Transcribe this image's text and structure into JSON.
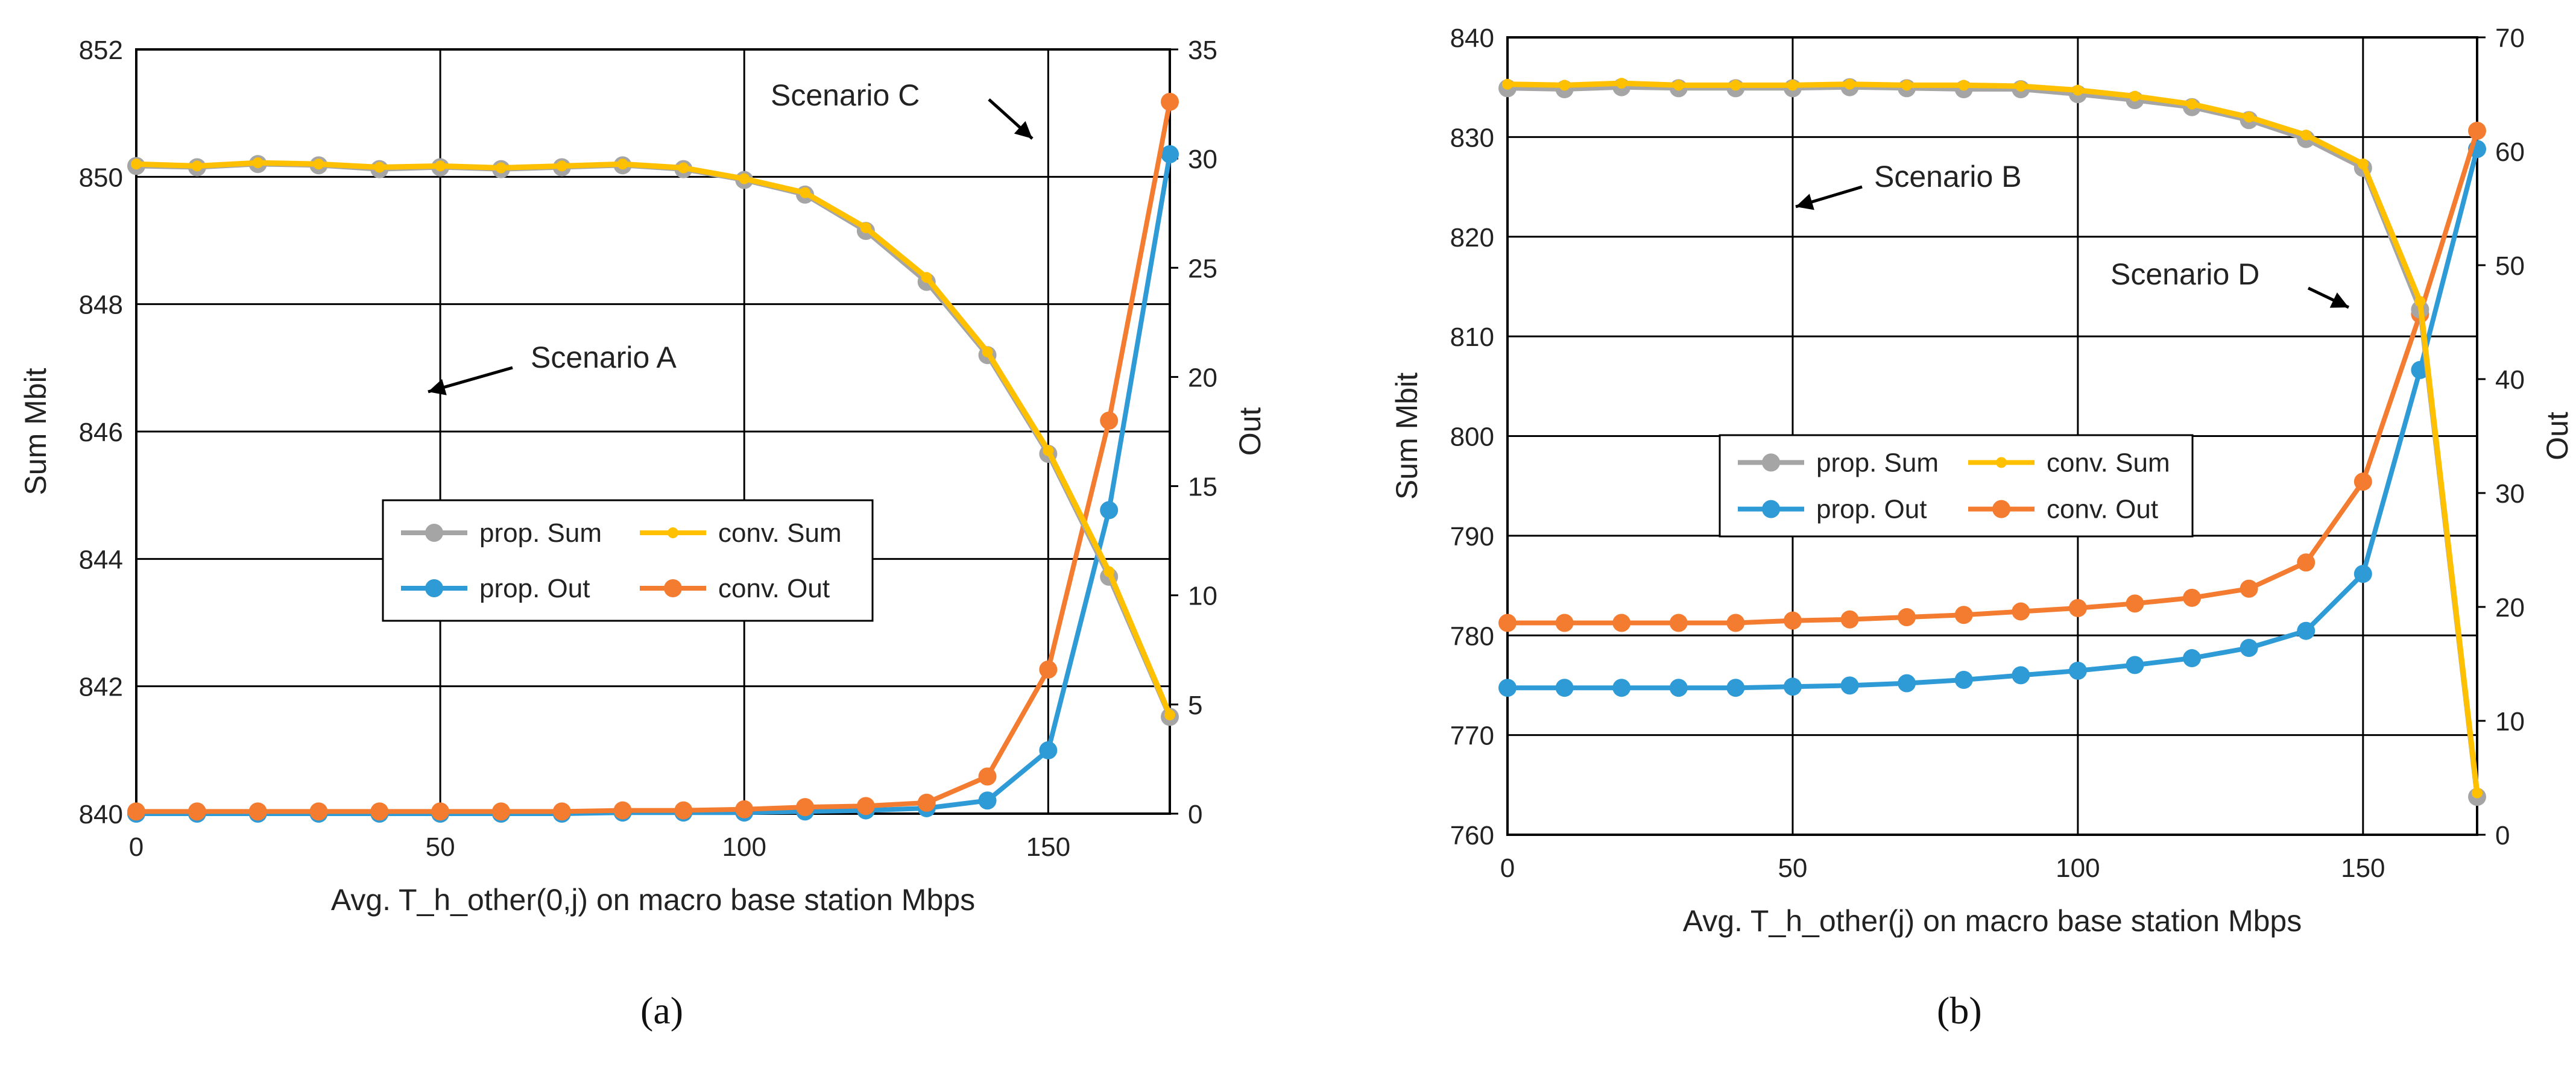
{
  "chart_data": [
    {
      "type": "line",
      "panel": "a",
      "caption": "(a)",
      "xlabel": "Avg. T_h_other(0,j) on macro base station Mbps",
      "ylabel": "Sum Mbit",
      "y2label": "Out",
      "grid": true,
      "xlim": [
        0,
        170
      ],
      "xticks": [
        0,
        50,
        100,
        150
      ],
      "ylim": [
        840,
        852
      ],
      "yticks": [
        840,
        842,
        844,
        846,
        848,
        850,
        852
      ],
      "y2lim": [
        0,
        35
      ],
      "y2ticks": [
        0,
        5,
        10,
        15,
        20,
        25,
        30,
        35
      ],
      "x": [
        0,
        10,
        20,
        30,
        40,
        50,
        60,
        70,
        80,
        90,
        100,
        110,
        120,
        130,
        140,
        150,
        160,
        170
      ],
      "series": [
        {
          "name": "prop. Sum",
          "axis": "left",
          "color": "#A5A5A5",
          "marker": "circle",
          "values": [
            850.17,
            850.15,
            850.2,
            850.18,
            850.12,
            850.15,
            850.12,
            850.15,
            850.18,
            850.12,
            849.95,
            849.72,
            849.15,
            848.35,
            847.2,
            845.65,
            843.72,
            841.52
          ]
        },
        {
          "name": "conv. Sum",
          "axis": "left",
          "color": "#FFC000",
          "marker": "small",
          "values": [
            850.2,
            850.17,
            850.22,
            850.2,
            850.15,
            850.17,
            850.14,
            850.17,
            850.2,
            850.14,
            849.97,
            849.75,
            849.2,
            848.42,
            847.25,
            845.7,
            843.8,
            841.55
          ]
        },
        {
          "name": "prop. Out",
          "axis": "right",
          "color": "#2E9BD6",
          "marker": "circle",
          "values": [
            0,
            0,
            0,
            0,
            0,
            0,
            0,
            0,
            0.05,
            0.05,
            0.05,
            0.1,
            0.15,
            0.25,
            0.6,
            2.9,
            13.9,
            30.2
          ]
        },
        {
          "name": "conv. Out",
          "axis": "right",
          "color": "#F47C30",
          "marker": "circle",
          "values": [
            0.1,
            0.1,
            0.1,
            0.1,
            0.1,
            0.1,
            0.1,
            0.1,
            0.15,
            0.15,
            0.2,
            0.3,
            0.35,
            0.5,
            1.7,
            6.6,
            18.0,
            32.6
          ]
        }
      ],
      "legend": [
        "prop. Sum",
        "conv. Sum",
        "prop. Out",
        "conv. Out"
      ],
      "annotations": [
        {
          "text": "Scenario C",
          "arrow_to": [
            150,
            31.0
          ],
          "arrow_axis": "right"
        },
        {
          "text": "Scenario A",
          "arrow_to": [
            50,
            846.6
          ],
          "arrow_axis": "left"
        }
      ]
    },
    {
      "type": "line",
      "panel": "b",
      "caption": "(b)",
      "xlabel": "Avg. T_h_other(j) on macro base station Mbps",
      "ylabel": "Sum Mbit",
      "y2label": "Out",
      "grid": true,
      "xlim": [
        0,
        170
      ],
      "xticks": [
        0,
        50,
        100,
        150
      ],
      "ylim": [
        760,
        840
      ],
      "yticks": [
        760,
        770,
        780,
        790,
        800,
        810,
        820,
        830,
        840
      ],
      "y2lim": [
        0,
        70
      ],
      "y2ticks": [
        0,
        10,
        20,
        30,
        40,
        50,
        60,
        70
      ],
      "x": [
        0,
        10,
        20,
        30,
        40,
        50,
        60,
        70,
        80,
        90,
        100,
        110,
        120,
        130,
        140,
        150,
        160,
        170
      ],
      "series": [
        {
          "name": "prop. Sum",
          "axis": "left",
          "color": "#A5A5A5",
          "marker": "circle",
          "values": [
            834.9,
            834.8,
            835.0,
            834.9,
            834.9,
            834.9,
            835.0,
            834.9,
            834.8,
            834.8,
            834.3,
            833.7,
            833.0,
            831.7,
            829.8,
            826.9,
            812.7,
            763.8
          ]
        },
        {
          "name": "conv. Sum",
          "axis": "left",
          "color": "#FFC000",
          "marker": "small",
          "values": [
            835.3,
            835.2,
            835.4,
            835.2,
            835.2,
            835.2,
            835.3,
            835.2,
            835.2,
            835.1,
            834.7,
            834.1,
            833.3,
            832.0,
            830.2,
            827.3,
            813.5,
            764.2
          ]
        },
        {
          "name": "prop. Out",
          "axis": "right",
          "color": "#2E9BD6",
          "marker": "circle",
          "values": [
            12.9,
            12.9,
            12.9,
            12.9,
            12.9,
            13.0,
            13.1,
            13.3,
            13.6,
            14.0,
            14.4,
            14.9,
            15.5,
            16.4,
            17.9,
            22.9,
            40.8,
            60.2
          ]
        },
        {
          "name": "conv. Out",
          "axis": "right",
          "color": "#F47C30",
          "marker": "circle",
          "values": [
            18.6,
            18.6,
            18.6,
            18.6,
            18.6,
            18.8,
            18.9,
            19.1,
            19.3,
            19.6,
            19.9,
            20.3,
            20.8,
            21.6,
            23.9,
            31.0,
            45.7,
            61.8
          ]
        }
      ],
      "legend": [
        "prop. Sum",
        "conv. Sum",
        "prop. Out",
        "conv. Out"
      ],
      "annotations": [
        {
          "text": "Scenario B",
          "arrow_to": [
            50,
            823
          ],
          "arrow_axis": "left"
        },
        {
          "text": "Scenario D",
          "arrow_to": [
            150,
            47.0
          ],
          "arrow_axis": "right"
        }
      ]
    }
  ]
}
